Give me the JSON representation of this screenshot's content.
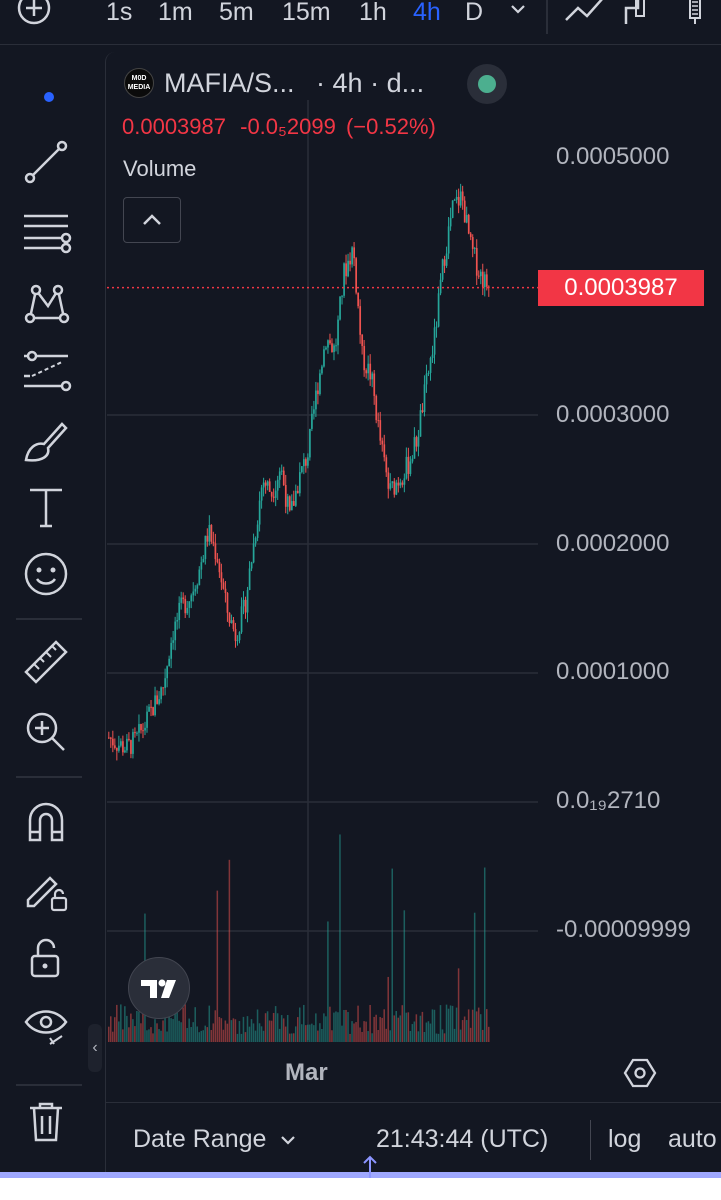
{
  "toolbar": {
    "timeframes": [
      "1s",
      "1m",
      "5m",
      "15m",
      "1h",
      "4h",
      "D"
    ],
    "active_timeframe": "4h"
  },
  "legend": {
    "symbol": "MAFIA/S...",
    "interval": "· 4h · d...",
    "logo_text": "M0D MEDIA",
    "last_price": "0.0003987",
    "change": "-0.0₅2099",
    "change_pct": "(−0.52%)",
    "volume_label": "Volume"
  },
  "price_axis": {
    "labels": [
      "0.0005000",
      "0.0003000",
      "0.0002000",
      "0.0001000",
      "0.0₁₉2710",
      "-0.00009999"
    ],
    "current_price_tag": "0.0003987"
  },
  "time_axis": {
    "label": "Mar"
  },
  "footer": {
    "date_range": "Date Range",
    "clock": "21:43:44 (UTC)",
    "log": "log",
    "auto": "auto"
  },
  "colors": {
    "up": "#26a69a",
    "down": "#ef5350",
    "background": "#131722",
    "accent": "#2962ff",
    "price_tag": "#f23645"
  },
  "chart_data": {
    "type": "candlestick",
    "title": "MAFIA/S... · 4h",
    "ylim": [
      -0.0001,
      0.00055
    ],
    "last_price": 0.0003987,
    "x_label": "Mar",
    "series": [
      {
        "name": "price",
        "values": [
          5e-05,
          4.5e-05,
          4.2e-05,
          4.8e-05,
          6e-05,
          7.5e-05,
          9e-05,
          0.00013,
          0.00015,
          0.00016,
          0.00018,
          0.00021,
          0.00019,
          0.00015,
          0.00013,
          0.00015,
          0.0002,
          0.00025,
          0.00024,
          0.00026,
          0.00022,
          0.00025,
          0.00027,
          0.00032,
          0.00036,
          0.00035,
          0.00041,
          0.00043,
          0.000345,
          0.00033,
          0.00028,
          0.00024,
          0.00025,
          0.00026,
          0.00028,
          0.00032,
          0.00036,
          0.00042,
          0.00046,
          0.00047,
          0.00043,
          0.00041,
          0.0003987
        ]
      }
    ]
  }
}
